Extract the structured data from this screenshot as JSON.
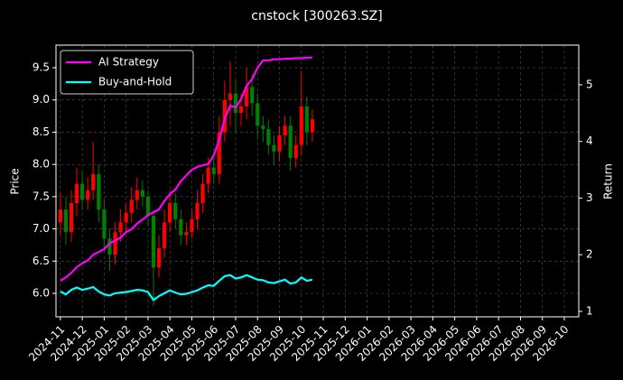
{
  "chart_data": {
    "type": "candlestick",
    "title": "cnstock [300263.SZ]",
    "ylabel": "Price",
    "y2label": "Return",
    "grid": true,
    "legend_loc": "upper left",
    "up_color": "#ff0000",
    "down_color": "#008000",
    "x": [
      0,
      0.25,
      0.5,
      0.75,
      1,
      1.25,
      1.5,
      1.75,
      2,
      2.25,
      2.5,
      2.75,
      3,
      3.25,
      3.5,
      3.75,
      4,
      4.25,
      4.5,
      4.75,
      5,
      5.25,
      5.5,
      5.75,
      6,
      6.25,
      6.5,
      6.75,
      7,
      7.25,
      7.5,
      7.75,
      8,
      8.25,
      8.5,
      8.75,
      9,
      9.25,
      9.5,
      9.75,
      10,
      10.25,
      10.5,
      10.75,
      11,
      11.25,
      11.5
    ],
    "open": [
      7.1,
      7.3,
      6.95,
      7.4,
      7.7,
      7.45,
      7.6,
      7.85,
      7.3,
      6.85,
      6.6,
      6.95,
      7.1,
      7.25,
      7.45,
      7.6,
      7.5,
      7.2,
      6.4,
      6.7,
      7.1,
      7.4,
      7.15,
      6.9,
      6.95,
      7.15,
      7.4,
      7.7,
      7.95,
      7.85,
      8.5,
      9.0,
      9.1,
      8.8,
      8.9,
      9.2,
      8.95,
      8.6,
      8.55,
      8.3,
      8.2,
      8.45,
      8.6,
      8.1,
      8.3,
      8.9,
      8.5
    ],
    "high": [
      7.55,
      7.5,
      7.6,
      7.95,
      7.9,
      7.8,
      8.35,
      8.0,
      7.45,
      7.0,
      7.1,
      7.3,
      7.4,
      7.65,
      7.8,
      7.75,
      7.6,
      7.3,
      6.9,
      7.3,
      7.6,
      7.55,
      7.3,
      7.1,
      7.3,
      7.6,
      7.85,
      8.1,
      8.1,
      8.75,
      9.3,
      9.6,
      9.3,
      9.1,
      9.5,
      9.4,
      9.1,
      8.75,
      8.7,
      8.45,
      8.6,
      8.75,
      8.75,
      8.45,
      9.45,
      9.05,
      8.85
    ],
    "low": [
      6.9,
      6.75,
      6.8,
      7.2,
      7.3,
      7.3,
      7.45,
      7.1,
      6.65,
      6.35,
      6.45,
      6.8,
      6.95,
      7.1,
      7.3,
      7.35,
      7.05,
      5.8,
      6.25,
      6.55,
      6.95,
      7.0,
      6.75,
      6.75,
      6.85,
      7.0,
      7.25,
      7.55,
      7.7,
      7.7,
      8.35,
      8.6,
      8.5,
      8.6,
      8.7,
      8.75,
      8.4,
      8.35,
      8.15,
      8.0,
      8.05,
      8.3,
      7.9,
      7.95,
      8.15,
      8.3,
      8.35
    ],
    "close": [
      7.3,
      6.95,
      7.4,
      7.7,
      7.45,
      7.6,
      7.85,
      7.3,
      6.85,
      6.6,
      6.95,
      7.1,
      7.25,
      7.45,
      7.6,
      7.5,
      7.2,
      6.4,
      6.7,
      7.1,
      7.4,
      7.15,
      6.9,
      6.95,
      7.15,
      7.4,
      7.7,
      7.95,
      7.85,
      8.5,
      9.0,
      9.1,
      8.8,
      8.9,
      9.2,
      8.95,
      8.6,
      8.55,
      8.3,
      8.2,
      8.45,
      8.6,
      8.1,
      8.3,
      8.9,
      8.5,
      8.7
    ],
    "series": [
      {
        "name": "AI Strategy",
        "color": "#ff00ff",
        "axis": "y2",
        "values": [
          1.54,
          1.6,
          1.68,
          1.78,
          1.85,
          1.9,
          2.0,
          2.05,
          2.1,
          2.2,
          2.25,
          2.3,
          2.4,
          2.45,
          2.55,
          2.62,
          2.7,
          2.75,
          2.8,
          2.95,
          3.07,
          3.15,
          3.3,
          3.4,
          3.5,
          3.55,
          3.58,
          3.6,
          3.75,
          4.03,
          4.4,
          4.63,
          4.6,
          4.75,
          4.98,
          5.1,
          5.3,
          5.43,
          5.43,
          5.45,
          5.45,
          5.46,
          5.46,
          5.47,
          5.47,
          5.48,
          5.48
        ]
      },
      {
        "name": "Buy-and-Hold",
        "color": "#00ffff",
        "axis": "y2",
        "values": [
          1.35,
          1.3,
          1.38,
          1.42,
          1.38,
          1.4,
          1.43,
          1.35,
          1.3,
          1.28,
          1.32,
          1.33,
          1.34,
          1.36,
          1.38,
          1.37,
          1.34,
          1.2,
          1.27,
          1.32,
          1.37,
          1.33,
          1.3,
          1.31,
          1.34,
          1.37,
          1.42,
          1.46,
          1.45,
          1.54,
          1.62,
          1.64,
          1.58,
          1.6,
          1.64,
          1.6,
          1.56,
          1.55,
          1.51,
          1.5,
          1.53,
          1.56,
          1.49,
          1.51,
          1.6,
          1.54,
          1.56
        ]
      }
    ],
    "xlim": [
      -0.2,
      23.66
    ],
    "xticks": [
      {
        "value": 0,
        "label": "2024-11"
      },
      {
        "value": 1,
        "label": "2024-12"
      },
      {
        "value": 2,
        "label": "2025-01"
      },
      {
        "value": 3,
        "label": "2025-02"
      },
      {
        "value": 4,
        "label": "2025-03"
      },
      {
        "value": 5,
        "label": "2025-04"
      },
      {
        "value": 6,
        "label": "2025-05"
      },
      {
        "value": 7,
        "label": "2025-06"
      },
      {
        "value": 8,
        "label": "2025-07"
      },
      {
        "value": 9,
        "label": "2025-08"
      },
      {
        "value": 10,
        "label": "2025-09"
      },
      {
        "value": 11,
        "label": "2025-10"
      },
      {
        "value": 12,
        "label": "2025-11"
      },
      {
        "value": 13,
        "label": "2025-12"
      },
      {
        "value": 14,
        "label": "2026-01"
      },
      {
        "value": 15,
        "label": "2026-02"
      },
      {
        "value": 16,
        "label": "2026-03"
      },
      {
        "value": 17,
        "label": "2026-04"
      },
      {
        "value": 18,
        "label": "2026-05"
      },
      {
        "value": 19,
        "label": "2026-06"
      },
      {
        "value": 20,
        "label": "2026-07"
      },
      {
        "value": 21,
        "label": "2026-08"
      },
      {
        "value": 22,
        "label": "2026-09"
      },
      {
        "value": 23,
        "label": "2026-10"
      }
    ],
    "ylim": [
      5.636,
      9.85
    ],
    "yticks": [
      {
        "value": 6,
        "label": "6.0"
      },
      {
        "value": 6.5,
        "label": "6.5"
      },
      {
        "value": 7,
        "label": "7.0"
      },
      {
        "value": 7.5,
        "label": "7.5"
      },
      {
        "value": 8,
        "label": "8.0"
      },
      {
        "value": 8.5,
        "label": "8.5"
      },
      {
        "value": 9,
        "label": "9.0"
      },
      {
        "value": 9.5,
        "label": "9.5"
      }
    ],
    "y2lim": [
      0.904,
      5.7
    ],
    "y2ticks": [
      1,
      2,
      3,
      4,
      5
    ]
  }
}
